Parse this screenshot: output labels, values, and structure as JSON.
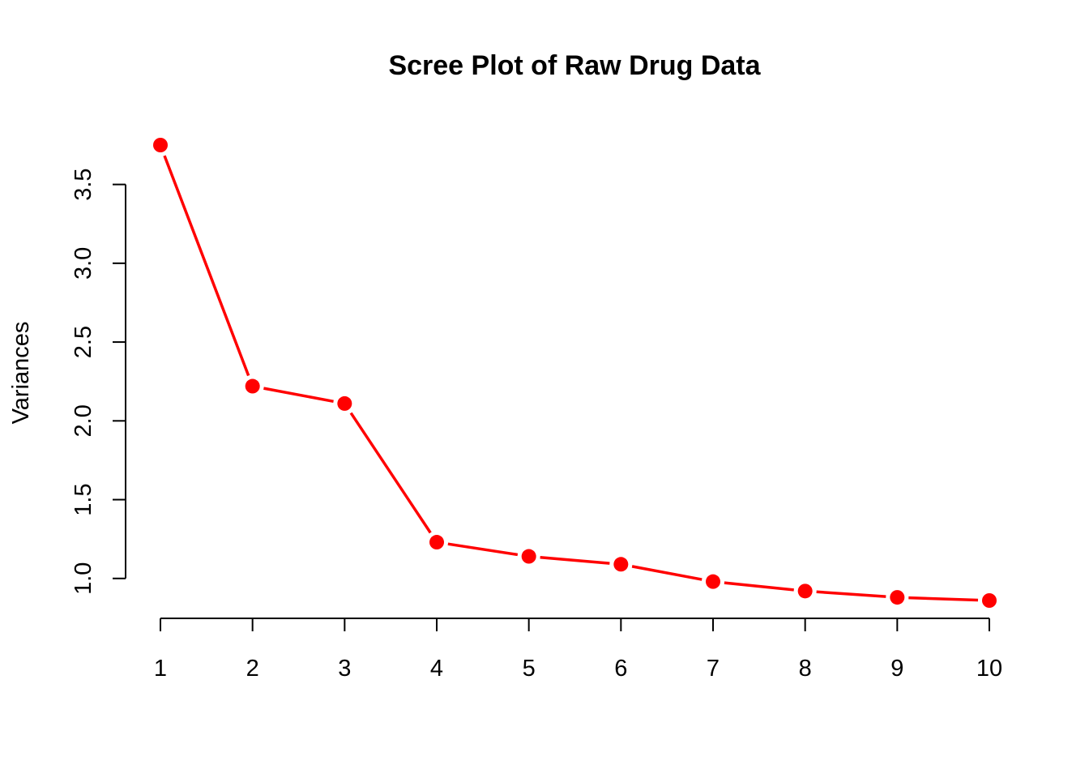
{
  "chart_data": {
    "type": "line",
    "title": "Scree Plot of Raw Drug Data",
    "xlabel": "",
    "ylabel": "Variances",
    "x": [
      1,
      2,
      3,
      4,
      5,
      6,
      7,
      8,
      9,
      10
    ],
    "x_tick_labels": [
      "1",
      "2",
      "3",
      "4",
      "5",
      "6",
      "7",
      "8",
      "9",
      "10"
    ],
    "series": [
      {
        "values": [
          3.75,
          2.22,
          2.11,
          1.23,
          1.14,
          1.09,
          0.98,
          0.92,
          0.88,
          0.86
        ]
      }
    ],
    "y_ticks": [
      1.0,
      1.5,
      2.0,
      2.5,
      3.0,
      3.5
    ],
    "y_tick_labels": [
      "1.0",
      "1.5",
      "2.0",
      "2.5",
      "3.0",
      "3.5"
    ],
    "xlim": [
      1,
      10
    ],
    "ylim": [
      0.86,
      3.75
    ],
    "grid": false,
    "legend": "none",
    "line_type": "both points and lines",
    "series_color": "#ff0000"
  }
}
